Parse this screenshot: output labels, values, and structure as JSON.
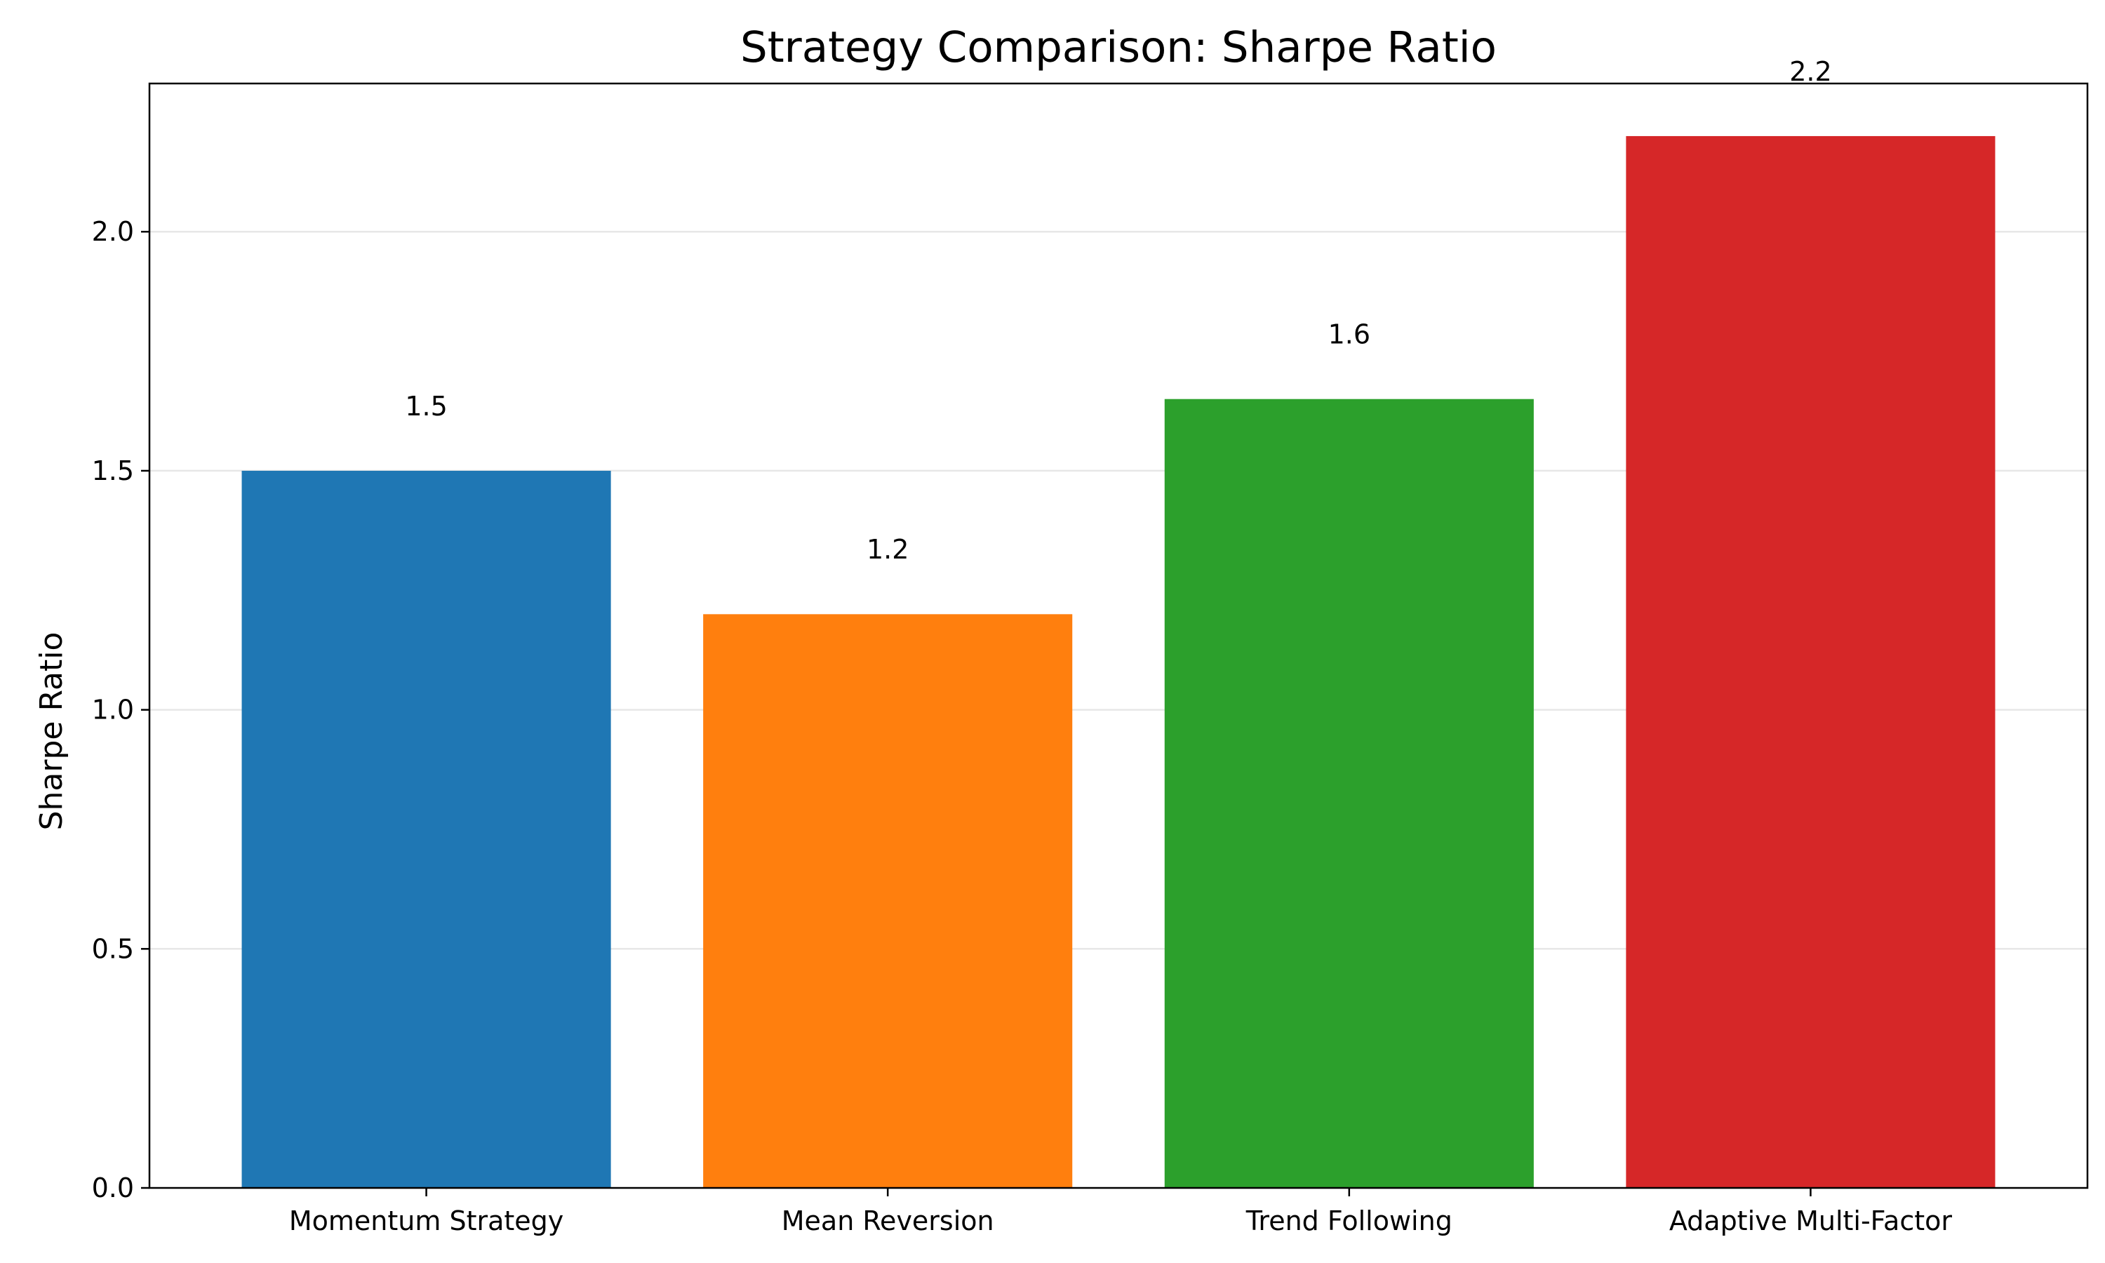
{
  "chart_data": {
    "type": "bar",
    "title": "Strategy Comparison: Sharpe Ratio",
    "xlabel": "",
    "ylabel": "Sharpe Ratio",
    "categories": [
      "Momentum Strategy",
      "Mean Reversion",
      "Trend Following",
      "Adaptive Multi-Factor"
    ],
    "values": [
      1.5,
      1.2,
      1.65,
      2.2
    ],
    "value_labels": [
      "1.5",
      "1.2",
      "1.6",
      "2.2"
    ],
    "colors": [
      "#1f77b4",
      "#ff7f0e",
      "#2ca02c",
      "#d62728"
    ],
    "ylim": [
      0,
      2.31
    ],
    "yticks": [
      0.0,
      0.5,
      1.0,
      1.5,
      2.0
    ],
    "ytick_labels": [
      "0.0",
      "0.5",
      "1.0",
      "1.5",
      "2.0"
    ],
    "grid": "y",
    "legend": "none"
  }
}
